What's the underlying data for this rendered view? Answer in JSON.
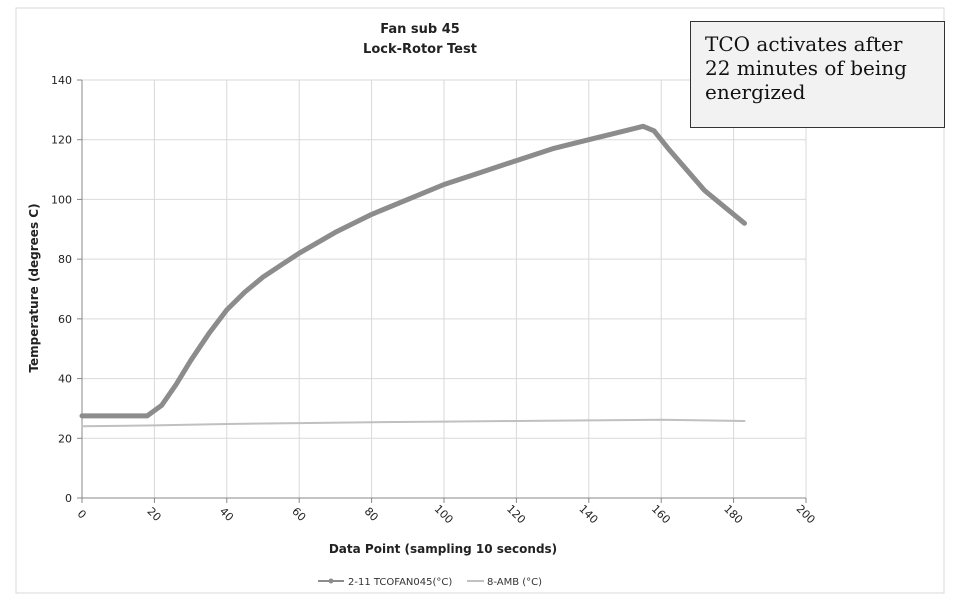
{
  "callout": {
    "text": "TCO activates after 22 minutes of being energized"
  },
  "chart_data": {
    "type": "line",
    "title": "Fan sub 45",
    "subtitle": "Lock-Rotor Test",
    "xlabel": "Data Point (sampling 10 seconds)",
    "ylabel": "Temperature (degrees C)",
    "xlim": [
      0,
      200
    ],
    "ylim": [
      0,
      140
    ],
    "x_ticks": [
      0,
      20,
      40,
      60,
      80,
      100,
      120,
      140,
      160,
      180,
      200
    ],
    "y_ticks": [
      0,
      20,
      40,
      60,
      80,
      100,
      120,
      140
    ],
    "grid": true,
    "legend_position": "bottom",
    "series": [
      {
        "name": "2-11 TCOFAN045(°C)",
        "color": "#8c8c8c",
        "points": [
          [
            0,
            27.5
          ],
          [
            10,
            27.5
          ],
          [
            18,
            27.5
          ],
          [
            22,
            31
          ],
          [
            26,
            38
          ],
          [
            30,
            46
          ],
          [
            35,
            55
          ],
          [
            40,
            63
          ],
          [
            45,
            69
          ],
          [
            50,
            74
          ],
          [
            55,
            78
          ],
          [
            60,
            82
          ],
          [
            70,
            89
          ],
          [
            80,
            95
          ],
          [
            90,
            100
          ],
          [
            100,
            105
          ],
          [
            110,
            109
          ],
          [
            120,
            113
          ],
          [
            130,
            117
          ],
          [
            140,
            120
          ],
          [
            150,
            123
          ],
          [
            155,
            124.5
          ],
          [
            158,
            123
          ],
          [
            162,
            117
          ],
          [
            167,
            110
          ],
          [
            172,
            103
          ],
          [
            177,
            98
          ],
          [
            183,
            92
          ]
        ]
      },
      {
        "name": "8-AMB (°C)",
        "color": "#c0c0c0",
        "points": [
          [
            0,
            24
          ],
          [
            20,
            24.3
          ],
          [
            40,
            24.8
          ],
          [
            60,
            25.1
          ],
          [
            80,
            25.4
          ],
          [
            100,
            25.6
          ],
          [
            120,
            25.8
          ],
          [
            140,
            26
          ],
          [
            160,
            26.2
          ],
          [
            183,
            25.8
          ]
        ]
      }
    ]
  }
}
